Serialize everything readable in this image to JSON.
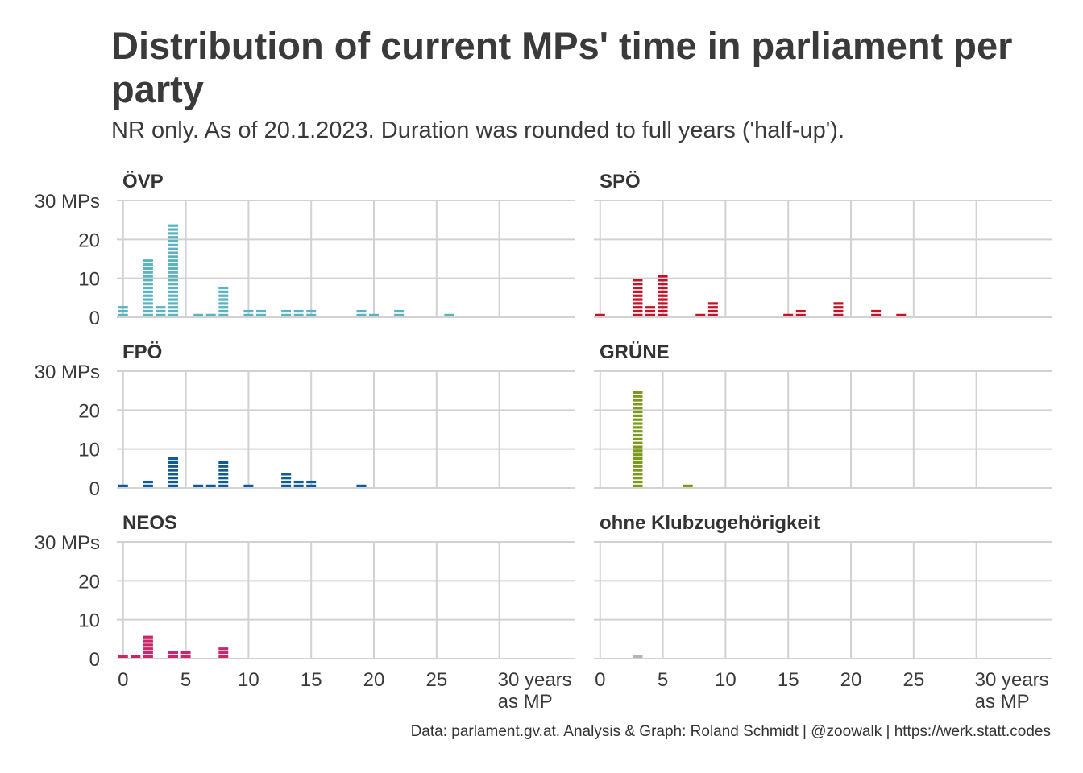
{
  "title": "Distribution of current MPs' time in parliament per party",
  "subtitle": "NR only. As of 20.1.2023. Duration was rounded to full years ('half-up').",
  "caption": "Data: parlament.gv.at. Analysis & Graph: Roland Schmidt | @zoowalk | https://werk.statt.codes",
  "chart_data": {
    "type": "bar",
    "facets": [
      "ÖVP",
      "SPÖ",
      "FPÖ",
      "GRÜNE",
      "NEOS",
      "ohne Klubzugehörigkeit"
    ],
    "xlim": [
      -0.5,
      36
    ],
    "ylim": [
      0,
      30
    ],
    "x_ticks": [
      0,
      5,
      10,
      15,
      20,
      25,
      30
    ],
    "x_tick_labels": [
      "0",
      "5",
      "10",
      "15",
      "20",
      "25",
      "30 years",
      "as MP"
    ],
    "y_ticks": [
      0,
      10,
      20,
      30
    ],
    "y_tick_labels": [
      "0",
      "10",
      "20",
      "30 MPs"
    ],
    "grid": true,
    "series": [
      {
        "name": "ÖVP",
        "color": "#5ab4c0",
        "x": [
          0,
          1,
          2,
          3,
          4,
          5,
          6,
          7,
          8,
          9,
          10,
          11,
          12,
          13,
          14,
          15,
          16,
          17,
          18,
          19,
          20,
          21,
          22,
          23,
          24,
          25,
          26,
          27,
          28,
          29,
          30
        ],
        "y": [
          3,
          0,
          15,
          3,
          24,
          0,
          1,
          1,
          8,
          0,
          2,
          2,
          0,
          2,
          2,
          2,
          0,
          0,
          0,
          2,
          1,
          0,
          2,
          0,
          0,
          0,
          1,
          0,
          0,
          0,
          0
        ]
      },
      {
        "name": "SPÖ",
        "color": "#c0142a",
        "x": [
          0,
          1,
          2,
          3,
          4,
          5,
          6,
          7,
          8,
          9,
          10,
          11,
          12,
          13,
          14,
          15,
          16,
          17,
          18,
          19,
          20,
          21,
          22,
          23,
          24,
          25,
          26,
          27,
          28,
          29,
          30
        ],
        "y": [
          1,
          0,
          0,
          10,
          3,
          11,
          0,
          0,
          1,
          4,
          0,
          0,
          0,
          0,
          0,
          1,
          2,
          0,
          0,
          4,
          0,
          0,
          2,
          0,
          1,
          0,
          0,
          0,
          0,
          0,
          0
        ]
      },
      {
        "name": "FPÖ",
        "color": "#0f5a9a",
        "x": [
          0,
          1,
          2,
          3,
          4,
          5,
          6,
          7,
          8,
          9,
          10,
          11,
          12,
          13,
          14,
          15,
          16,
          17,
          18,
          19,
          20,
          21,
          22,
          23,
          24,
          25,
          26,
          27,
          28,
          29,
          30
        ],
        "y": [
          1,
          0,
          2,
          0,
          8,
          0,
          1,
          1,
          7,
          0,
          1,
          0,
          0,
          4,
          2,
          2,
          0,
          0,
          0,
          1,
          0,
          0,
          0,
          0,
          0,
          0,
          0,
          0,
          0,
          0,
          0
        ]
      },
      {
        "name": "GRÜNE",
        "color": "#7a9a1a",
        "x": [
          0,
          1,
          2,
          3,
          4,
          5,
          6,
          7,
          8,
          9,
          10,
          11,
          12,
          13,
          14,
          15,
          16,
          17,
          18,
          19,
          20,
          21,
          22,
          23,
          24,
          25,
          26,
          27,
          28,
          29,
          30
        ],
        "y": [
          0,
          0,
          0,
          25,
          0,
          0,
          0,
          1,
          0,
          0,
          0,
          0,
          0,
          0,
          0,
          0,
          0,
          0,
          0,
          0,
          0,
          0,
          0,
          0,
          0,
          0,
          0,
          0,
          0,
          0,
          0
        ]
      },
      {
        "name": "NEOS",
        "color": "#c8286a",
        "x": [
          0,
          1,
          2,
          3,
          4,
          5,
          6,
          7,
          8,
          9,
          10,
          11,
          12,
          13,
          14,
          15,
          16,
          17,
          18,
          19,
          20,
          21,
          22,
          23,
          24,
          25,
          26,
          27,
          28,
          29,
          30
        ],
        "y": [
          1,
          1,
          6,
          0,
          2,
          2,
          0,
          0,
          3,
          0,
          0,
          0,
          0,
          0,
          0,
          0,
          0,
          0,
          0,
          0,
          0,
          0,
          0,
          0,
          0,
          0,
          0,
          0,
          0,
          0,
          0
        ]
      },
      {
        "name": "ohne Klubzugehörigkeit",
        "color": "#b4b4b4",
        "x": [
          0,
          1,
          2,
          3,
          4,
          5,
          6,
          7,
          8,
          9,
          10,
          11,
          12,
          13,
          14,
          15,
          16,
          17,
          18,
          19,
          20,
          21,
          22,
          23,
          24,
          25,
          26,
          27,
          28,
          29,
          30
        ],
        "y": [
          0,
          0,
          0,
          1,
          0,
          0,
          0,
          0,
          0,
          0,
          0,
          0,
          0,
          0,
          0,
          0,
          0,
          0,
          0,
          0,
          0,
          0,
          0,
          0,
          0,
          0,
          0,
          0,
          0,
          0,
          0
        ]
      }
    ]
  }
}
